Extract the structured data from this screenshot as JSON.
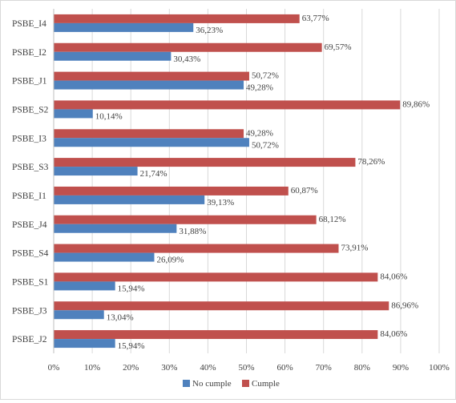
{
  "chart_data": {
    "type": "bar",
    "orientation": "horizontal",
    "categories": [
      "PSBE_I4",
      "PSBE_I2",
      "PSBE_J1",
      "PSBE_S2",
      "PSBE_I3",
      "PSBE_S3",
      "PSBE_I1",
      "PSBE_J4",
      "PSBE_S4",
      "PSBE_S1",
      "PSBE_J3",
      "PSBE_J2"
    ],
    "series": [
      {
        "name": "No cumple",
        "color": "#4f81bd",
        "values": [
          36.23,
          30.43,
          49.28,
          10.14,
          50.72,
          21.74,
          39.13,
          31.88,
          26.09,
          15.94,
          13.04,
          15.94
        ],
        "labels": [
          "36,23%",
          "30,43%",
          "49,28%",
          "10,14%",
          "50,72%",
          "21,74%",
          "39,13%",
          "31,88%",
          "26,09%",
          "15,94%",
          "13,04%",
          "15,94%"
        ]
      },
      {
        "name": "Cumple",
        "color": "#c0504d",
        "values": [
          63.77,
          69.57,
          50.72,
          89.86,
          49.28,
          78.26,
          60.87,
          68.12,
          73.91,
          84.06,
          86.96,
          84.06
        ],
        "labels": [
          "63,77%",
          "69,57%",
          "50,72%",
          "89,86%",
          "49,28%",
          "78,26%",
          "60,87%",
          "68,12%",
          "73,91%",
          "84,06%",
          "86,96%",
          "84,06%"
        ]
      }
    ],
    "xlim": [
      0,
      100
    ],
    "x_ticks": [
      "0%",
      "10%",
      "20%",
      "30%",
      "40%",
      "50%",
      "60%",
      "70%",
      "80%",
      "90%",
      "100%"
    ],
    "grid": "vertical",
    "legend_position": "bottom",
    "title": "",
    "xlabel": "",
    "ylabel": ""
  }
}
